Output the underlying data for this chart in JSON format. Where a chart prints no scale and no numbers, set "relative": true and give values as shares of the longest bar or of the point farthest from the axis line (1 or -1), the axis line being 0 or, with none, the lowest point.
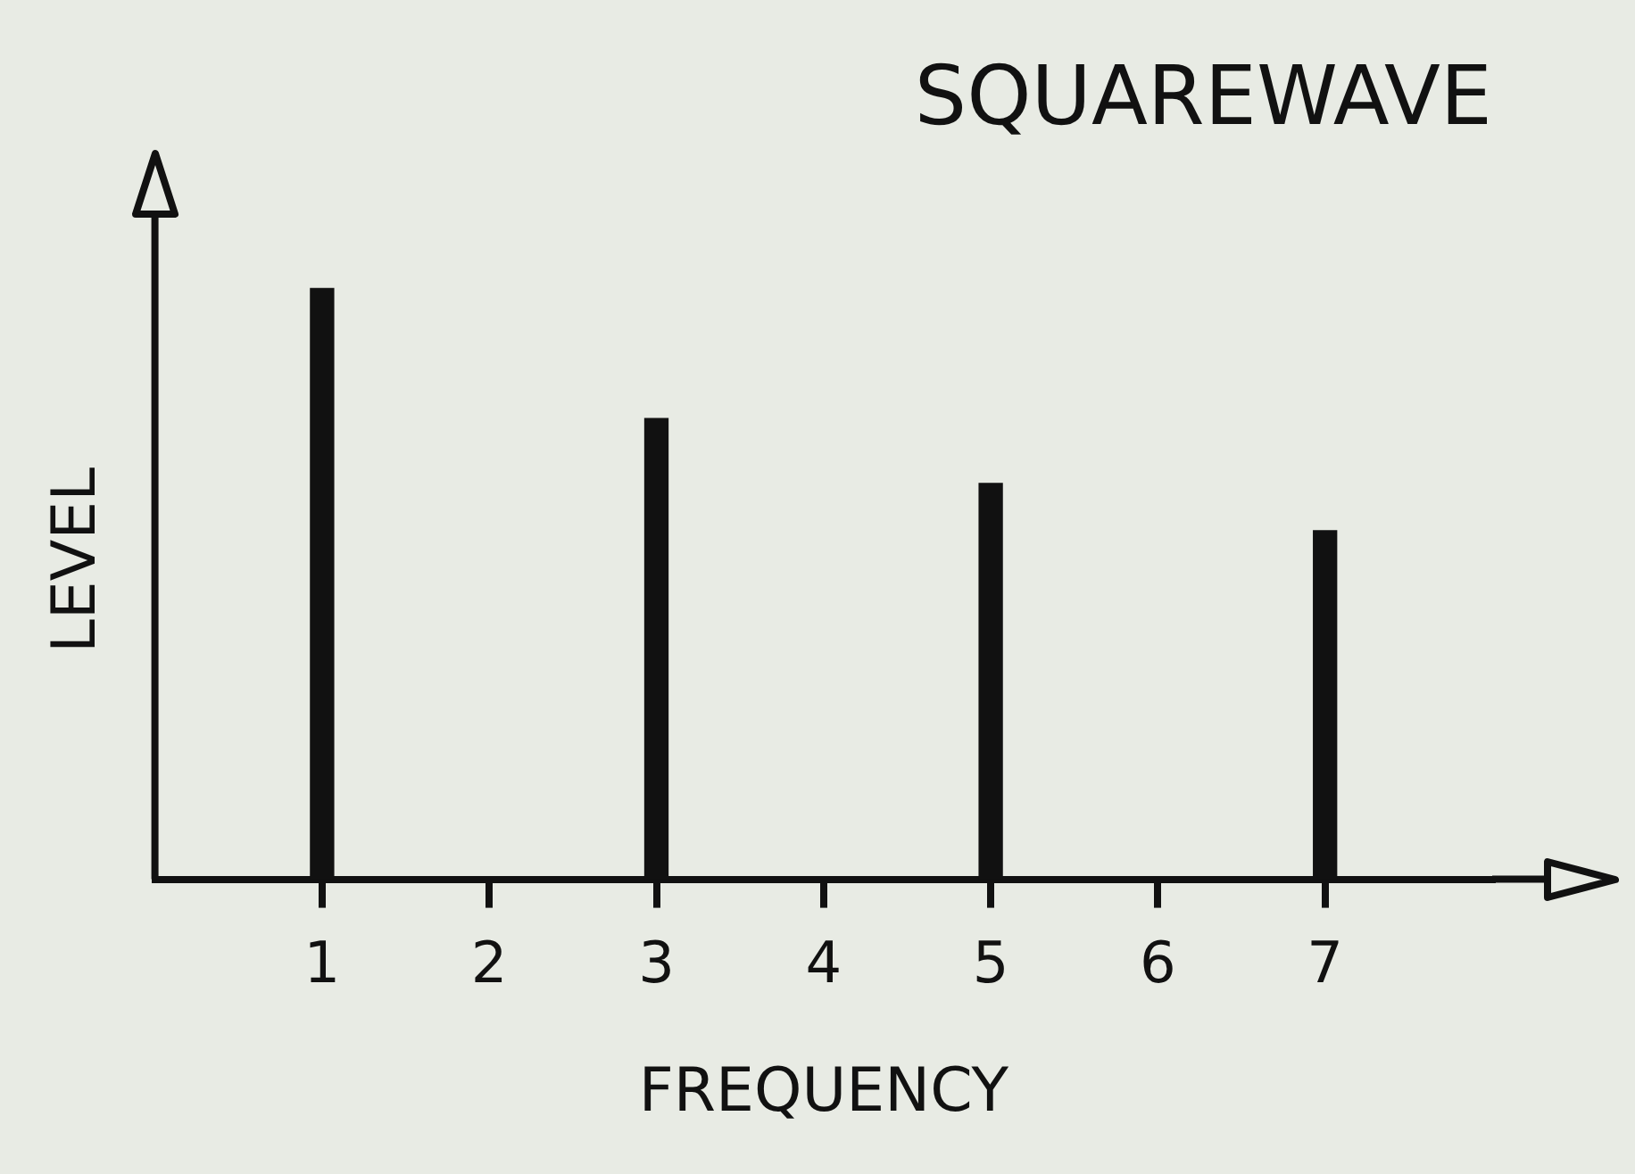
{
  "chart_data": {
    "type": "bar",
    "title": "SQUAREWAVE",
    "xlabel": "FREQUENCY",
    "ylabel": "LEVEL",
    "relative": true,
    "x": [
      1,
      3,
      5,
      7
    ],
    "values": [
      1,
      0.78,
      0.67,
      0.59
    ],
    "xlim": [
      0,
      8
    ],
    "xticks": [
      1,
      2,
      3,
      4,
      5,
      6,
      7
    ],
    "color": "#111111",
    "grid": false,
    "legend": false
  }
}
